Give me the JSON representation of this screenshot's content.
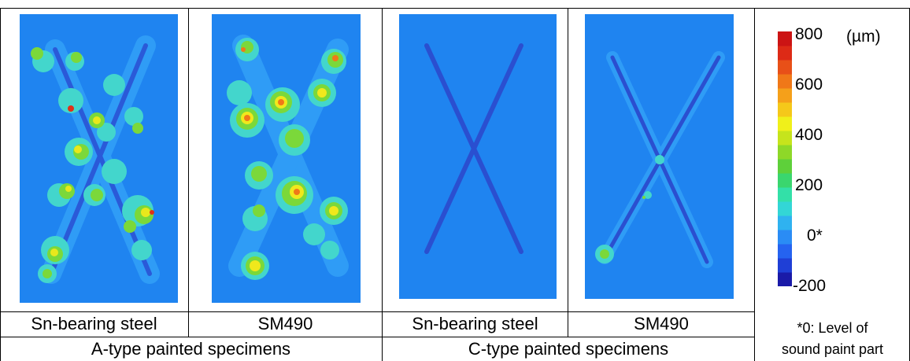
{
  "specimens": [
    {
      "label": "Sn-bearing steel",
      "group": "A"
    },
    {
      "label": "SM490",
      "group": "A"
    },
    {
      "label": "Sn-bearing steel",
      "group": "C"
    },
    {
      "label": "SM490",
      "group": "C"
    }
  ],
  "groups": {
    "a_type": "A-type painted specimens",
    "c_type": "C-type painted specimens"
  },
  "color_scale": {
    "unit": "(µm)",
    "ticks": [
      "800",
      "600",
      "400",
      "200",
      "0*",
      "-200"
    ],
    "min": -200,
    "max": 800,
    "colors": [
      "#1a1aa8",
      "#1f3fd6",
      "#2563f0",
      "#2a8cf5",
      "#2fb2f0",
      "#33d6d6",
      "#33e0a8",
      "#3ad66e",
      "#5ed03a",
      "#8ed828",
      "#c6e41c",
      "#f0f01a",
      "#f5c81a",
      "#f5a01a",
      "#f07818",
      "#e85018",
      "#dd2a16",
      "#cc1414"
    ],
    "footnote_line1": "*0: Level of",
    "footnote_line2": "sound paint part"
  }
}
